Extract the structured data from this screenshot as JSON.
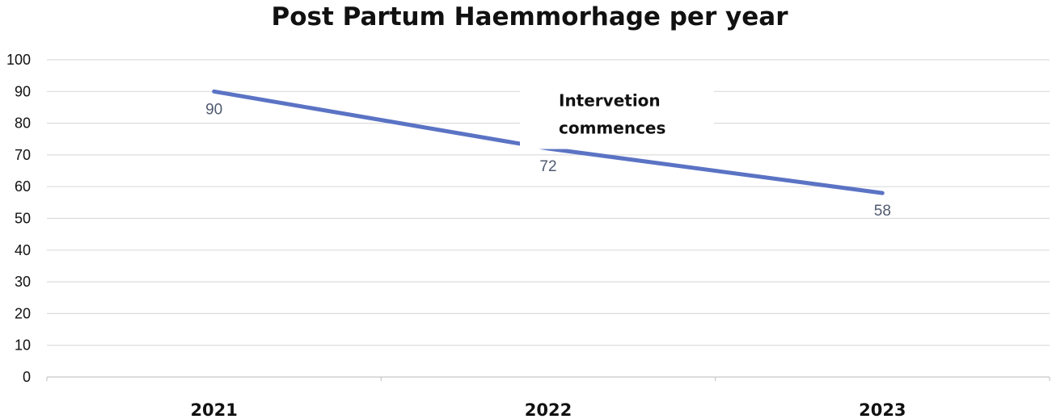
{
  "chart_data": {
    "type": "line",
    "title": "Post Partum Haemmorhage per year",
    "xlabel": "",
    "ylabel": "",
    "categories": [
      "2021",
      "2022",
      "2023"
    ],
    "series": [
      {
        "values": [
          90,
          72,
          58
        ],
        "data_labels": [
          "90",
          "72",
          "58"
        ],
        "color": "#5b73c4"
      }
    ],
    "ylim": [
      0,
      100
    ],
    "yticks": [
      "0",
      "10",
      "20",
      "30",
      "40",
      "50",
      "60",
      "70",
      "80",
      "90",
      "100"
    ],
    "grid": true,
    "legend": "none",
    "annotation": {
      "lines": [
        "Intervetion",
        "commences"
      ],
      "anchor_category": "2022",
      "anchor_value": 80
    }
  }
}
